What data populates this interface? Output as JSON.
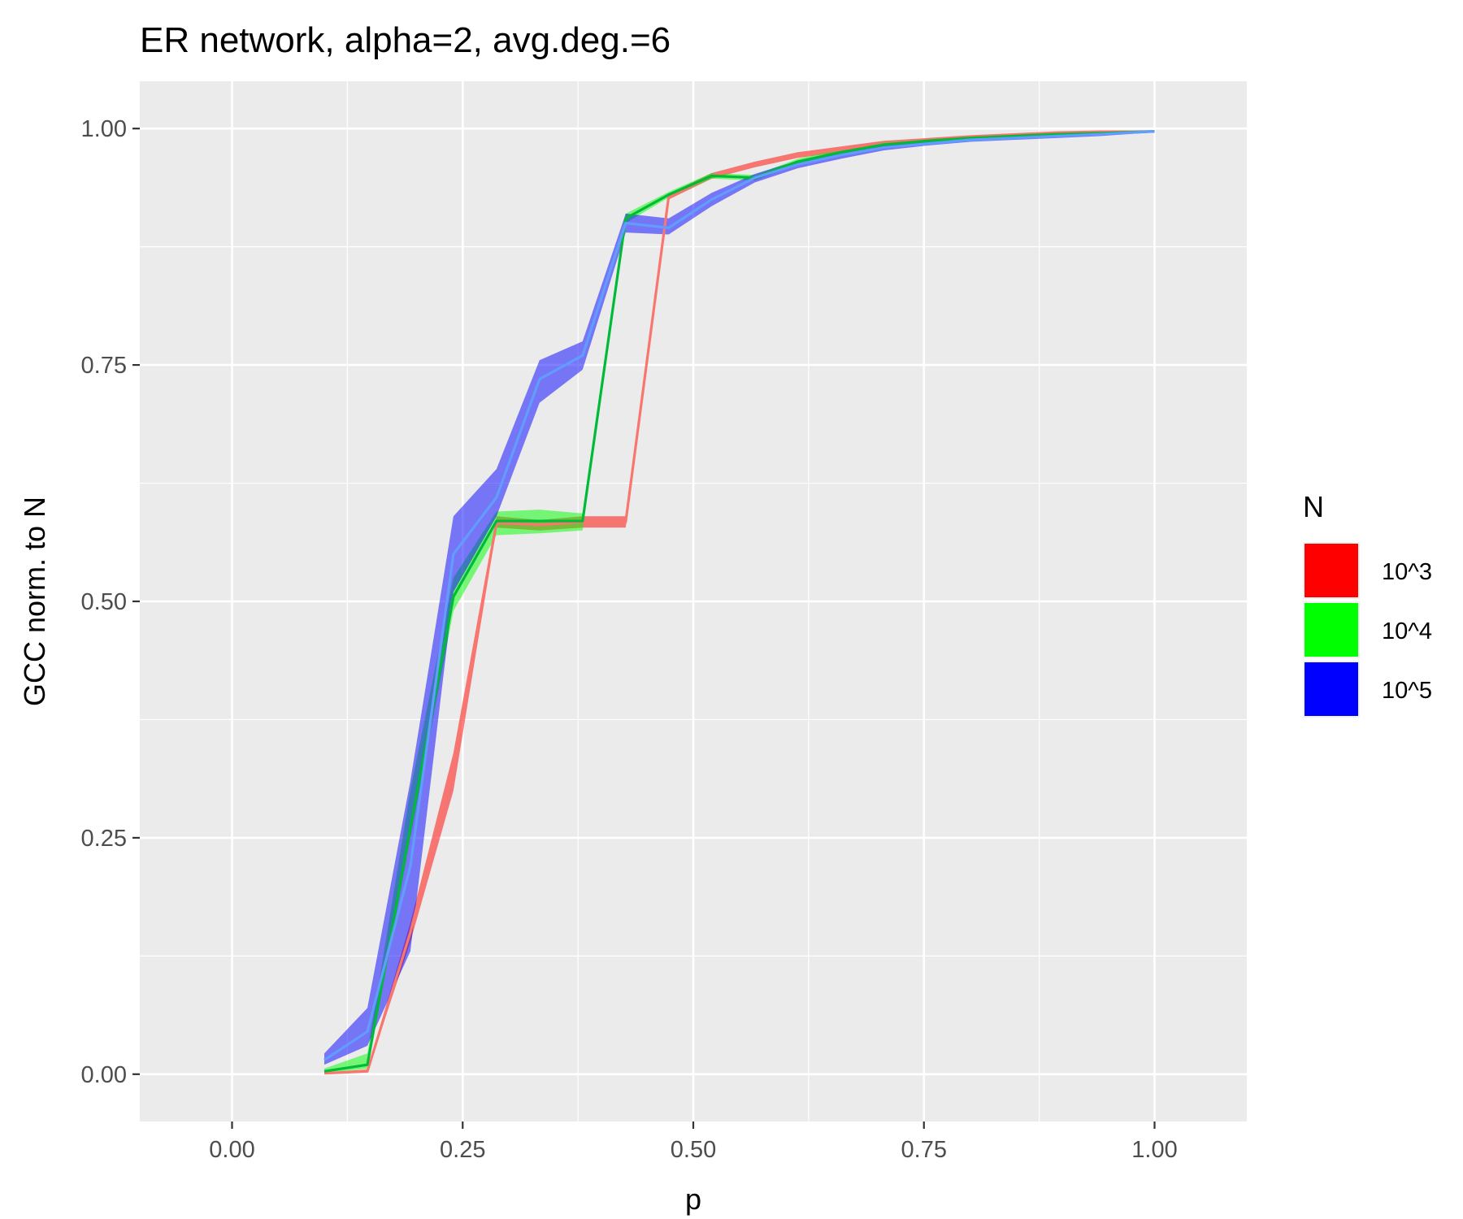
{
  "chart_data": {
    "type": "line",
    "title": "ER network, alpha=2, avg.deg.=6",
    "xlabel": "p",
    "ylabel": "GCC norm. to N",
    "xlim": [
      -0.1,
      1.1
    ],
    "ylim": [
      -0.05,
      1.05
    ],
    "x_ticks": [
      0,
      0.25,
      0.5,
      0.75,
      1
    ],
    "x_tick_labels": [
      "0.00",
      "0.25",
      "0.50",
      "0.75",
      "1.00"
    ],
    "y_ticks": [
      0,
      0.25,
      0.5,
      0.75,
      1
    ],
    "y_tick_labels": [
      "0.00",
      "0.25",
      "0.50",
      "0.75",
      "1.00"
    ],
    "grid": true,
    "legend": {
      "title": "N",
      "placement": "right"
    },
    "x": [
      0.1,
      0.1467,
      0.1933,
      0.24,
      0.2867,
      0.3333,
      0.38,
      0.4267,
      0.4733,
      0.52,
      0.5667,
      0.6133,
      0.66,
      0.7067,
      0.7533,
      0.8,
      0.8467,
      0.8933,
      0.94,
      1.0
    ],
    "series": [
      {
        "name": "10^3",
        "fill_color": "#ff0000",
        "line_color": "#f8766d",
        "values": [
          0.001,
          0.003,
          0.15,
          0.33,
          0.583,
          0.581,
          0.584,
          0.584,
          0.928,
          0.95,
          0.962,
          0.972,
          0.978,
          0.984,
          0.988,
          0.991,
          0.993,
          0.995,
          0.996,
          0.997
        ],
        "lower": [
          0.0005,
          0.002,
          0.14,
          0.3,
          0.578,
          0.575,
          0.578,
          0.578,
          0.925,
          0.947,
          0.959,
          0.969,
          0.975,
          0.981,
          0.986,
          0.989,
          0.991,
          0.993,
          0.994,
          0.996
        ],
        "upper": [
          0.002,
          0.005,
          0.16,
          0.34,
          0.59,
          0.586,
          0.59,
          0.59,
          0.931,
          0.953,
          0.965,
          0.975,
          0.981,
          0.987,
          0.99,
          0.993,
          0.995,
          0.997,
          0.998,
          0.998
        ]
      },
      {
        "name": "10^4",
        "fill_color": "#00ff00",
        "line_color": "#00ba38",
        "values": [
          0.003,
          0.01,
          0.26,
          0.505,
          0.585,
          0.585,
          0.585,
          0.905,
          0.93,
          0.95,
          0.948,
          0.965,
          0.975,
          0.983,
          0.987,
          0.99,
          0.992,
          0.994,
          0.995,
          0.997
        ],
        "lower": [
          0.001,
          0.006,
          0.25,
          0.49,
          0.57,
          0.572,
          0.575,
          0.9,
          0.927,
          0.947,
          0.945,
          0.962,
          0.972,
          0.98,
          0.985,
          0.988,
          0.99,
          0.992,
          0.993,
          0.996
        ],
        "upper": [
          0.006,
          0.022,
          0.3,
          0.525,
          0.595,
          0.597,
          0.593,
          0.91,
          0.933,
          0.953,
          0.951,
          0.968,
          0.978,
          0.986,
          0.989,
          0.992,
          0.994,
          0.996,
          0.997,
          0.998
        ]
      },
      {
        "name": "10^5",
        "fill_color": "#0000ff",
        "line_color": "#619cff",
        "values": [
          0.015,
          0.045,
          0.22,
          0.55,
          0.61,
          0.735,
          0.76,
          0.9,
          0.895,
          0.925,
          0.948,
          0.962,
          0.972,
          0.98,
          0.984,
          0.988,
          0.99,
          0.992,
          0.994,
          0.997
        ],
        "lower": [
          0.01,
          0.03,
          0.13,
          0.51,
          0.59,
          0.71,
          0.745,
          0.89,
          0.888,
          0.918,
          0.943,
          0.958,
          0.968,
          0.977,
          0.982,
          0.986,
          0.988,
          0.99,
          0.992,
          0.996
        ],
        "upper": [
          0.022,
          0.07,
          0.31,
          0.59,
          0.64,
          0.755,
          0.775,
          0.91,
          0.905,
          0.932,
          0.952,
          0.966,
          0.976,
          0.983,
          0.986,
          0.99,
          0.992,
          0.994,
          0.996,
          0.998
        ]
      }
    ]
  }
}
